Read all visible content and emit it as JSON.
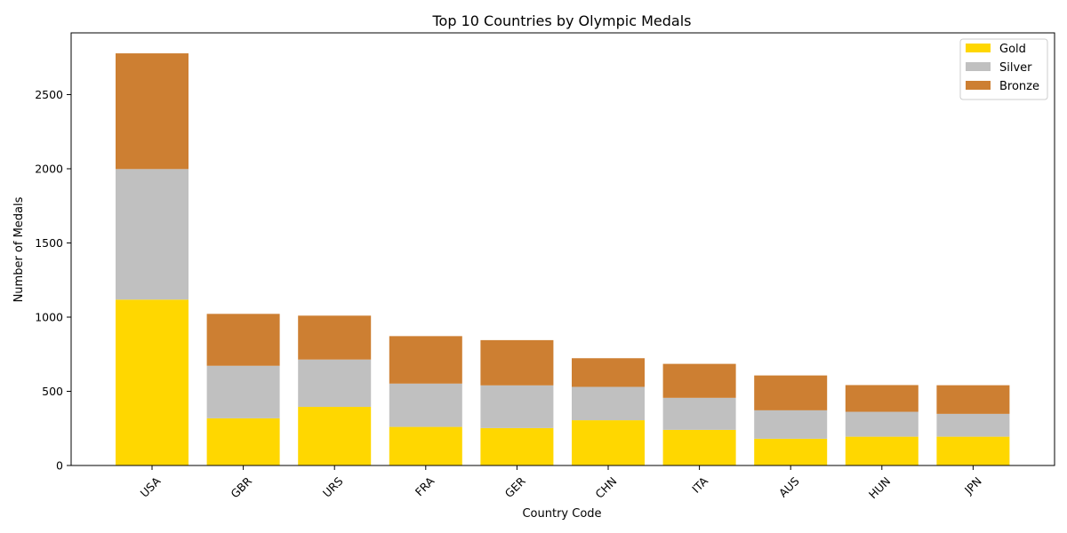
{
  "chart_data": {
    "type": "bar",
    "stacked": true,
    "title": "Top 10 Countries by Olympic Medals",
    "xlabel": "Country Code",
    "ylabel": "Number of Medals",
    "categories": [
      "USA",
      "GBR",
      "URS",
      "FRA",
      "GER",
      "CHN",
      "ITA",
      "AUS",
      "HUN",
      "JPN"
    ],
    "series": [
      {
        "name": "Gold",
        "color": "#FFD700",
        "values": [
          1118,
          318,
          395,
          260,
          252,
          305,
          240,
          180,
          194,
          194
        ]
      },
      {
        "name": "Silver",
        "color": "#C0C0C0",
        "values": [
          880,
          354,
          319,
          292,
          288,
          225,
          216,
          192,
          168,
          154
        ]
      },
      {
        "name": "Bronze",
        "color": "#CD7F32",
        "values": [
          780,
          350,
          296,
          320,
          305,
          193,
          229,
          235,
          180,
          193
        ]
      }
    ],
    "yticks": [
      0,
      500,
      1000,
      1500,
      2000,
      2500
    ],
    "ylim": [
      0,
      2916
    ],
    "xtick_rotation": 45,
    "grid": false,
    "legend": "top-right"
  }
}
